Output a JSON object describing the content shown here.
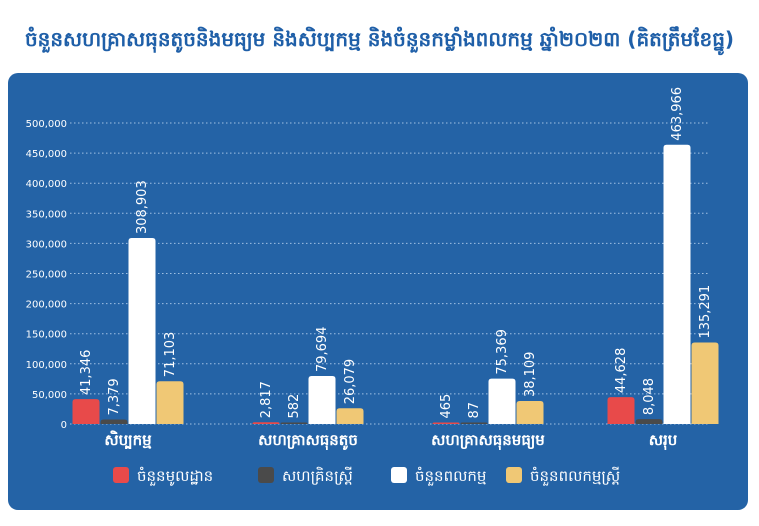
{
  "chart_data": {
    "type": "bar",
    "title": "ចំនួនសហគ្រាសធុនតូចនិងមធ្យម និងសិប្បកម្ម និងចំនួនកម្លាំងពលកម្ម ឆ្នាំ២០២៣ (គិតត្រឹមខែធ្នូ)",
    "categories": [
      "សិប្បកម្ម",
      "សហគ្រាសធុនតូច",
      "សហគ្រាសធុនមធ្យម",
      "សរុប"
    ],
    "series": [
      {
        "name": "ចំនួនមូលដ្ឋាន",
        "values": [
          41346,
          2817,
          465,
          44628
        ],
        "labels": [
          "41,346",
          "2,817",
          "465",
          "44,628"
        ],
        "color": "#e84a4a"
      },
      {
        "name": "សហគ្រិនស្ត្រី",
        "values": [
          7379,
          582,
          87,
          8048
        ],
        "labels": [
          "7,379",
          "582",
          "87",
          "8,048"
        ],
        "color": "#4a4a4a"
      },
      {
        "name": "ចំនួនពលកម្ម",
        "values": [
          308903,
          79694,
          75369,
          463966
        ],
        "labels": [
          "308,903",
          "79,694",
          "75,369",
          "463,966"
        ],
        "color": "#ffffff"
      },
      {
        "name": "ចំនួនពលកម្មស្ត្រី",
        "values": [
          71103,
          26079,
          38109,
          135291
        ],
        "labels": [
          "71,103",
          "26,079",
          "38,109",
          "135,291"
        ],
        "color": "#f0c875"
      }
    ],
    "ylim": [
      0,
      500000
    ],
    "yticks": [
      "0",
      "50,000",
      "100,000",
      "150,000",
      "200,000",
      "250,000",
      "300,000",
      "350,000",
      "400,000",
      "450,000",
      "500,000"
    ],
    "grid": true,
    "legend": "bottom"
  }
}
